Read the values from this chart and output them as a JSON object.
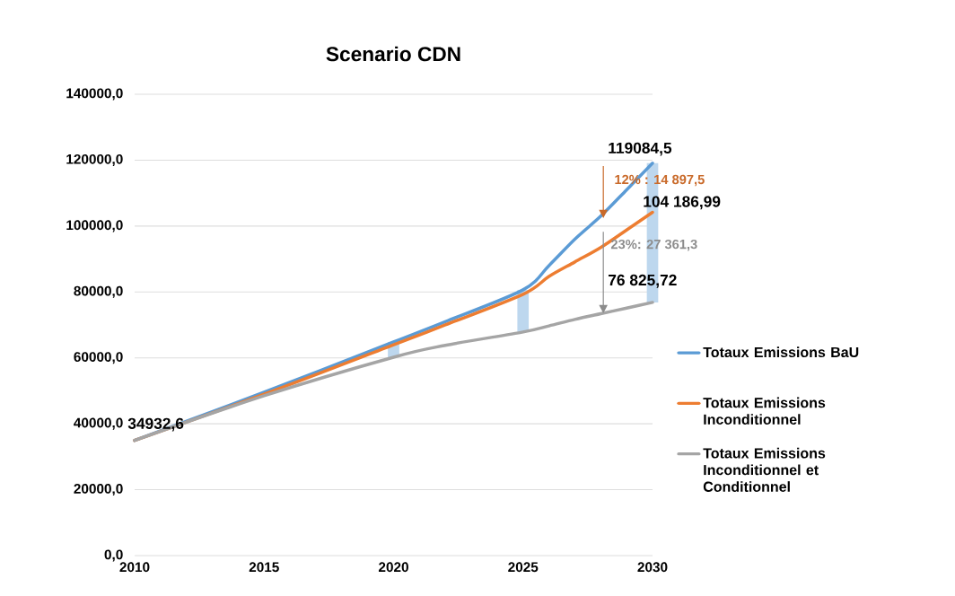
{
  "chart_data": {
    "type": "line",
    "title": "Scenario CDN",
    "x": [
      2010,
      2015,
      2020,
      2022,
      2025,
      2026,
      2027,
      2028,
      2029,
      2030
    ],
    "series": [
      {
        "name": "Totaux Emissions BaU",
        "color": "#5b9bd5",
        "values": [
          34932.6,
          49600,
          64850,
          71000,
          80650,
          88000,
          96000,
          103000,
          111000,
          119084.5
        ]
      },
      {
        "name": "Totaux Emissions Inconditionnel",
        "color": "#ed7d31",
        "values": [
          34932.6,
          49000,
          64000,
          70000,
          79300,
          84700,
          89100,
          93500,
          98800,
          104186.99
        ]
      },
      {
        "name": "Totaux Emissions Inconditionnel et Conditionnel",
        "color": "#a5a5a5",
        "values": [
          34932.6,
          48500,
          60200,
          63800,
          67850,
          69700,
          71660,
          73400,
          75100,
          76825.72
        ]
      },
      {
        "type": "bar",
        "color": "#bdd7ee",
        "x": [
          2020,
          2025,
          2030
        ],
        "base": [
          60200,
          67850,
          76825.72
        ],
        "values": [
          4650,
          12800,
          42258.78
        ]
      }
    ],
    "ylim": [
      0,
      140000
    ],
    "yticks": [
      {
        "value": 0,
        "label": "0,0"
      },
      {
        "value": 20000,
        "label": "20000,0"
      },
      {
        "value": 40000,
        "label": "40000,0"
      },
      {
        "value": 60000,
        "label": "60000,0"
      },
      {
        "value": 80000,
        "label": "80000,0"
      },
      {
        "value": 100000,
        "label": "100000,0"
      },
      {
        "value": 120000,
        "label": "120000,0"
      },
      {
        "value": 140000,
        "label": "140000,0"
      }
    ],
    "xlim": [
      2010,
      2030
    ],
    "xticks": [
      2010,
      2015,
      2020,
      2025,
      2030
    ],
    "grid": "y",
    "legend": "right",
    "annotations": [
      {
        "text": "34932,6",
        "x": 2010,
        "y": 34932.6
      },
      {
        "text": "119084,5",
        "x": 2030,
        "y": 119084.5
      },
      {
        "text": "104 186,99",
        "x": 2030,
        "y": 104186.99
      },
      {
        "text": "76 825,72",
        "x": 2030,
        "y": 76825.72
      },
      {
        "text": "12% : 14 897,5",
        "x": 2028.1,
        "y": 102400
      },
      "23%: 27 361,3"
    ]
  }
}
